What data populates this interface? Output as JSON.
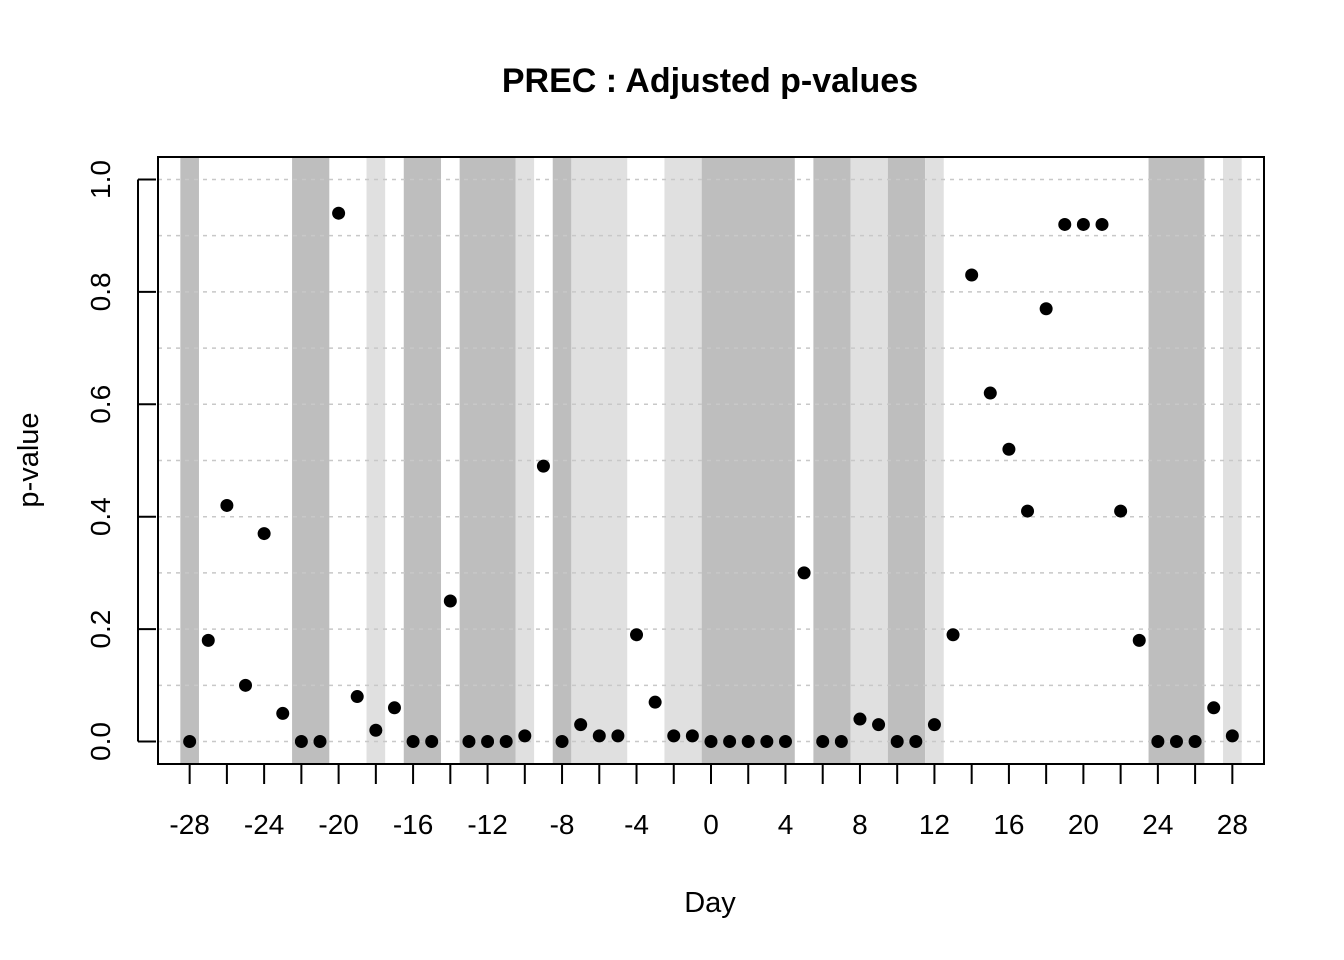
{
  "chart_data": {
    "type": "scatter",
    "title": "PREC : Adjusted p-values",
    "xlabel": "Day",
    "ylabel": "p-value",
    "xlim": [
      -29.7,
      29.7
    ],
    "ylim": [
      -0.04,
      1.04
    ],
    "x_ticks": [
      -28,
      -26,
      -24,
      -22,
      -20,
      -18,
      -16,
      -14,
      -12,
      -10,
      -8,
      -6,
      -4,
      -2,
      0,
      2,
      4,
      6,
      8,
      10,
      12,
      14,
      16,
      18,
      20,
      22,
      24,
      26,
      28
    ],
    "x_tick_labels": [
      "-28",
      "-24",
      "-20",
      "-16",
      "-12",
      "-8",
      "-4",
      "0",
      "4",
      "8",
      "12",
      "16",
      "20",
      "24",
      "28"
    ],
    "x_tick_label_values": [
      -28,
      -24,
      -20,
      -16,
      -12,
      -8,
      -4,
      0,
      4,
      8,
      12,
      16,
      20,
      24,
      28
    ],
    "y_ticks": [
      0.0,
      0.2,
      0.4,
      0.6,
      0.8,
      1.0
    ],
    "y_tick_labels": [
      "0.0",
      "0.2",
      "0.4",
      "0.6",
      "0.8",
      "1.0"
    ],
    "grid_y": [
      0.0,
      0.1,
      0.2,
      0.3,
      0.4,
      0.5,
      0.6,
      0.7,
      0.8,
      0.9,
      1.0
    ],
    "grid": "horizontal dotted",
    "shaded_bands": [
      {
        "from": -28.5,
        "to": -27.5,
        "shade": "dark"
      },
      {
        "from": -22.5,
        "to": -20.5,
        "shade": "dark"
      },
      {
        "from": -18.5,
        "to": -17.5,
        "shade": "light"
      },
      {
        "from": -16.5,
        "to": -14.5,
        "shade": "dark"
      },
      {
        "from": -13.5,
        "to": -10.5,
        "shade": "dark"
      },
      {
        "from": -10.5,
        "to": -9.5,
        "shade": "light"
      },
      {
        "from": -8.5,
        "to": -7.5,
        "shade": "dark"
      },
      {
        "from": -7.5,
        "to": -4.5,
        "shade": "light"
      },
      {
        "from": -2.5,
        "to": -0.5,
        "shade": "light"
      },
      {
        "from": -0.5,
        "to": 4.5,
        "shade": "dark"
      },
      {
        "from": 5.5,
        "to": 7.5,
        "shade": "dark"
      },
      {
        "from": 7.5,
        "to": 9.5,
        "shade": "light"
      },
      {
        "from": 9.5,
        "to": 11.5,
        "shade": "dark"
      },
      {
        "from": 11.5,
        "to": 12.5,
        "shade": "light"
      },
      {
        "from": 23.5,
        "to": 26.5,
        "shade": "dark"
      },
      {
        "from": 27.5,
        "to": 28.5,
        "shade": "light"
      }
    ],
    "colors": {
      "dark_band": "#bebebe",
      "light_band": "#e0e0e0",
      "points": "#000000",
      "grid": "#c8c8c8"
    },
    "x": [
      -28,
      -27,
      -26,
      -25,
      -24,
      -23,
      -22,
      -21,
      -20,
      -19,
      -18,
      -17,
      -16,
      -15,
      -14,
      -13,
      -12,
      -11,
      -10,
      -9,
      -8,
      -7,
      -6,
      -5,
      -4,
      -3,
      -2,
      -1,
      0,
      1,
      2,
      3,
      4,
      5,
      6,
      7,
      8,
      9,
      10,
      11,
      12,
      13,
      14,
      15,
      16,
      17,
      18,
      19,
      20,
      21,
      22,
      23,
      24,
      25,
      26,
      27,
      28
    ],
    "y": [
      0.0,
      0.18,
      0.42,
      0.1,
      0.37,
      0.05,
      0.0,
      0.0,
      0.94,
      0.08,
      0.02,
      0.06,
      0.0,
      0.0,
      0.25,
      0.0,
      0.0,
      0.0,
      0.01,
      0.49,
      0.0,
      0.03,
      0.01,
      0.01,
      0.19,
      0.07,
      0.01,
      0.01,
      0.0,
      0.0,
      0.0,
      0.0,
      0.0,
      0.3,
      0.0,
      0.0,
      0.04,
      0.03,
      0.0,
      0.0,
      0.03,
      0.19,
      0.83,
      0.62,
      0.52,
      0.41,
      0.77,
      0.92,
      0.92,
      0.92,
      0.41,
      0.18,
      0.0,
      0.0,
      0.0,
      0.06,
      0.01
    ]
  }
}
